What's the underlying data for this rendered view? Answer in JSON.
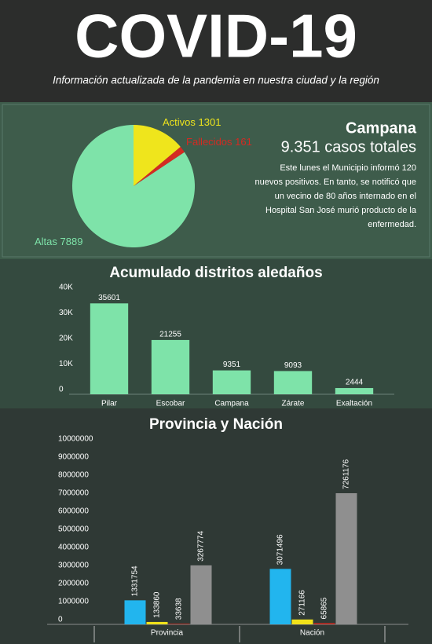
{
  "header": {
    "title": "COVID-19",
    "subtitle": "Información actualizada de la pandemia en nuestra ciudad y la región"
  },
  "info": {
    "title": "Campana",
    "subtitle": "9.351 casos totales",
    "text_lines": [
      "Este lunes el Municipio informó 120",
      "nuevos positivos. En tanto, se notificó que",
      "un vecino de 80 años internado en el",
      "Hospital San José murió producto de la",
      "enfermedad."
    ]
  },
  "chart_data": [
    {
      "type": "pie",
      "categories": [
        "Activos",
        "Fallecidos",
        "Altas"
      ],
      "values": [
        1301,
        161,
        7889
      ],
      "colors": [
        "#efe51c",
        "#d42a22",
        "#7ee3a9"
      ]
    },
    {
      "type": "bar",
      "title": "Acumulado distritos aledaños",
      "categories": [
        "Pilar",
        "Escobar",
        "Campana",
        "Zárate",
        "Exaltación"
      ],
      "values": [
        35601,
        21255,
        9351,
        9093,
        2444
      ],
      "color": "#7ee3a9",
      "ylim": [
        0,
        40000
      ],
      "yticks": [
        0,
        {
          "value": 10000,
          "label": "10K"
        },
        {
          "value": 20000,
          "label": "20K"
        },
        {
          "value": 30000,
          "label": "30K"
        },
        {
          "value": 40000,
          "label": "40K"
        }
      ]
    },
    {
      "type": "grouped-bar",
      "title": "Provincia y Nación",
      "categories": [
        "Provincia",
        "Nación"
      ],
      "series": [
        {
          "color": "#22b5ee",
          "values": [
            1331754,
            3071496
          ]
        },
        {
          "color": "#f1e21a",
          "values": [
            133860,
            271166
          ]
        },
        {
          "color": "#d8281f",
          "values": [
            33638,
            65865
          ]
        },
        {
          "color": "#8f8f8f",
          "values": [
            3267774,
            7261176
          ]
        }
      ],
      "ylim": [
        0,
        10000000
      ],
      "yticks": [
        0,
        1000000,
        2000000,
        3000000,
        4000000,
        5000000,
        6000000,
        7000000,
        8000000,
        9000000,
        10000000
      ]
    }
  ]
}
